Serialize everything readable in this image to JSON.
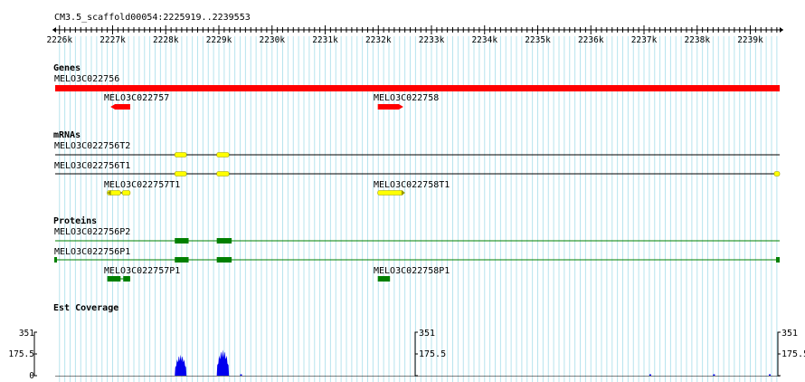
{
  "region": "CM3.5_scaffold00054:2225919..2239553",
  "ruler": {
    "start_kb": 2226,
    "end_kb": 2239,
    "step_kb": 1,
    "tick_labels": [
      "2226k",
      "2227k",
      "2228k",
      "2229k",
      "2230k",
      "2231k",
      "2232k",
      "2233k",
      "2234k",
      "2235k",
      "2236k",
      "2237k",
      "2238k",
      "2239k"
    ]
  },
  "view": {
    "start_bp": 2225919,
    "end_bp": 2239553
  },
  "colors": {
    "grid": "#b7e4ee",
    "gene": "#ff0000",
    "mrna": "#ffff00",
    "mrna_outline": "#999900",
    "protein": "#008000",
    "coverage": "#0000ee"
  },
  "tracks": {
    "genes": {
      "title": "Genes",
      "features": [
        {
          "name": "MELO3C022756",
          "start": 2225919,
          "end": 2239553,
          "strand": "none"
        },
        {
          "name": "MELO3C022757",
          "start": 2226960,
          "end": 2227330,
          "strand": "-"
        },
        {
          "name": "MELO3C022758",
          "start": 2231990,
          "end": 2232470,
          "strand": "+"
        }
      ]
    },
    "mrnas": {
      "title": "mRNAs",
      "features": [
        {
          "name": "MELO3C022756T2",
          "start": 2225919,
          "end": 2239553,
          "exons": [
            [
              2228170,
              2228390
            ],
            [
              2228960,
              2229190
            ]
          ]
        },
        {
          "name": "MELO3C022756T1",
          "start": 2225919,
          "end": 2239553,
          "exons": [
            [
              2228170,
              2228390
            ],
            [
              2228960,
              2229190
            ],
            [
              2239450,
              2239553
            ]
          ]
        },
        {
          "name": "MELO3C022757T1",
          "start": 2226900,
          "end": 2227330,
          "exons": [
            [
              2226900,
              2227150
            ],
            [
              2227180,
              2227330
            ]
          ]
        },
        {
          "name": "MELO3C022758T1",
          "start": 2231990,
          "end": 2232470,
          "exons": [
            [
              2231990,
              2232470
            ]
          ]
        }
      ]
    },
    "proteins": {
      "title": "Proteins",
      "features": [
        {
          "name": "MELO3C022756P2",
          "start": 2225919,
          "end": 2239553,
          "blocks": [
            [
              2228170,
              2228430
            ],
            [
              2228960,
              2229240
            ]
          ]
        },
        {
          "name": "MELO3C022756P1",
          "start": 2225919,
          "end": 2239553,
          "blocks": [
            [
              2228170,
              2228430
            ],
            [
              2228960,
              2229240
            ]
          ]
        },
        {
          "name": "MELO3C022757P1",
          "start": 2226900,
          "end": 2227330,
          "blocks": [
            [
              2226900,
              2227150
            ],
            [
              2227200,
              2227330
            ]
          ]
        },
        {
          "name": "MELO3C022758P1",
          "start": 2231990,
          "end": 2232220,
          "blocks": [
            [
              2231990,
              2232220
            ]
          ]
        }
      ]
    },
    "est_coverage": {
      "title": "Est Coverage",
      "scale_labels": [
        "351",
        "175.5",
        "0"
      ],
      "y_max": 351,
      "peaks": [
        {
          "start": 2228170,
          "end": 2228390,
          "max": 170
        },
        {
          "start": 2228960,
          "end": 2229190,
          "max": 210
        }
      ]
    }
  }
}
